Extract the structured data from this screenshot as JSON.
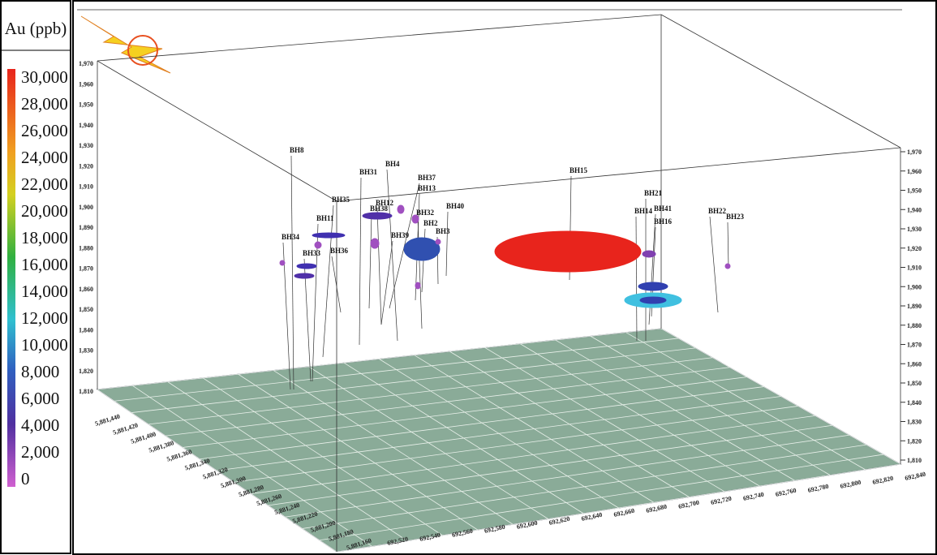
{
  "legend": {
    "title": "Au (ppb)",
    "labels": [
      "30,000",
      "28,000",
      "26,000",
      "24,000",
      "22,000",
      "20,000",
      "18,000",
      "16,000",
      "14,000",
      "12,000",
      "10,000",
      "8,000",
      "6,000",
      "4,000",
      "2,000",
      "0"
    ]
  },
  "axes": {
    "left": [
      "1,970",
      "1,960",
      "1,950",
      "1,940",
      "1,930",
      "1,920",
      "1,910",
      "1,900",
      "1,890",
      "1,880",
      "1,870",
      "1,860",
      "1,850",
      "1,840",
      "1,830",
      "1,820",
      "1,810"
    ],
    "right": [
      "1,970",
      "1,960",
      "1,950",
      "1,940",
      "1,930",
      "1,920",
      "1,910",
      "1,900",
      "1,890",
      "1,880",
      "1,870",
      "1,860",
      "1,850",
      "1,840",
      "1,830",
      "1,820",
      "1,810"
    ],
    "easting": [
      "692,520",
      "692,540",
      "692,560",
      "692,580",
      "692,600",
      "692,620",
      "692,640",
      "692,660",
      "692,680",
      "692,700",
      "692,720",
      "692,740",
      "692,760",
      "692,780",
      "692,800",
      "692,820",
      "692,840"
    ],
    "northing": [
      "5,881,440",
      "5,881,420",
      "5,881,400",
      "5,881,380",
      "5,881,360",
      "5,881,340",
      "5,881,320",
      "5,881,300",
      "5,881,280",
      "5,881,260",
      "5,881,240",
      "5,881,220",
      "5,881,200",
      "5,881,180",
      "5,881,160"
    ]
  },
  "boreholes": [
    "BH8",
    "BH31",
    "BH4",
    "BH37",
    "BH13",
    "BH35",
    "BH12",
    "BH38",
    "BH32",
    "BH11",
    "BH2",
    "BH40",
    "BH34",
    "BH39",
    "BH3",
    "BH33",
    "BH36",
    "BH15",
    "BH21",
    "BH14",
    "BH41",
    "BH16",
    "BH22",
    "BH23"
  ]
}
